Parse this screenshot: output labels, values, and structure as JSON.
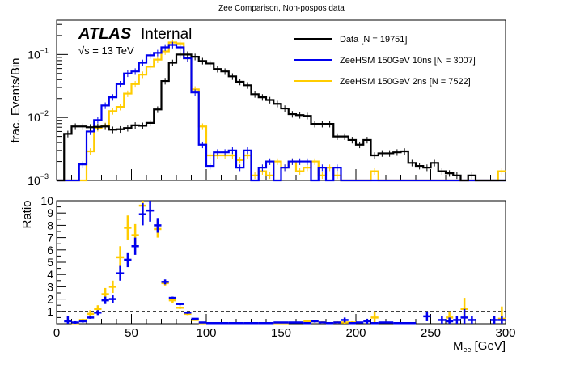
{
  "title": "Zee Comparison, Non-pospos data",
  "atlas_label": "ATLAS",
  "atlas_sublabel": "Internal",
  "energy_label": "√s = 13 TeV",
  "colors": {
    "data": "#000000",
    "sig10ns": "#0000ee",
    "sig2ns": "#ffcc00"
  },
  "chart_data": [
    {
      "type": "line",
      "style": "step-histogram",
      "title": "Zee Comparison, Non-pospos data",
      "xlabel": "M_ee [GeV]",
      "ylabel": "frac. Events/Bin",
      "yscale": "log",
      "xlim": [
        0,
        300
      ],
      "ylim": [
        0.001,
        0.35
      ],
      "yticks": [
        "10^-3",
        "10^-2",
        "10^-1"
      ],
      "bin_width": 5,
      "legend_position": "top-right",
      "series": [
        {
          "name": "Data [N = 19751]",
          "color": "#000000",
          "values": [
            0,
            0.0055,
            0.0072,
            0.0072,
            0.007,
            0.0071,
            0.0072,
            0.0064,
            0.0065,
            0.0068,
            0.0075,
            0.0074,
            0.0082,
            0.0134,
            0.038,
            0.074,
            0.1,
            0.1,
            0.092,
            0.079,
            0.072,
            0.059,
            0.054,
            0.045,
            0.037,
            0.0325,
            0.0235,
            0.021,
            0.019,
            0.0165,
            0.0139,
            0.0113,
            0.0109,
            0.0106,
            0.0079,
            0.0079,
            0.0079,
            0.005,
            0.005,
            0.0044,
            0.0037,
            0.0044,
            0.0025,
            0.0027,
            0.0027,
            0.0028,
            0.0029,
            0.0019,
            0.0017,
            0.0016,
            0.0019,
            0.0014,
            0.0013,
            0.0012,
            0.001,
            0.0012,
            0.001,
            0.001,
            0.001,
            0.001
          ]
        },
        {
          "name": "ZeeHSM 150GeV 10ns [N = 3007]",
          "color": "#0000ee",
          "values": [
            0,
            0,
            0,
            0.0018,
            0.006,
            0.0091,
            0.0155,
            0.021,
            0.034,
            0.05,
            0.054,
            0.074,
            0.097,
            0.106,
            0.13,
            0.142,
            0.13,
            0.087,
            0.025,
            0.0037,
            0.0017,
            0.0028,
            0.0028,
            0.003,
            0.0016,
            0.003,
            0.001,
            0.0016,
            0.002,
            0.001,
            0.0016,
            0.002,
            0.002,
            0.002,
            0.001,
            0.0016,
            0.001,
            0.0016,
            0.001,
            0.001,
            0.001,
            0.001,
            0.001,
            0.001,
            0.001,
            0.001,
            0.001,
            0.001,
            0.001,
            0.001,
            0.001,
            0.001,
            0.001,
            0.001,
            0.001,
            0.001,
            0.001,
            0.001,
            0.001,
            0.001
          ]
        },
        {
          "name": "ZeeHSM 150GeV 2ns [N = 7522]",
          "color": "#ffcc00",
          "values": [
            0,
            0,
            0,
            0.001,
            0.0029,
            0.0068,
            0.0074,
            0.0126,
            0.0147,
            0.024,
            0.034,
            0.048,
            0.064,
            0.083,
            0.112,
            0.155,
            0.15,
            0.087,
            0.028,
            0.0072,
            0.0025,
            0.0025,
            0.0025,
            0.0025,
            0.0021,
            0.0025,
            0.0012,
            0.0014,
            0.0012,
            0.002,
            0.0016,
            0.002,
            0.0014,
            0.0016,
            0.002,
            0.0012,
            0.0016,
            0.0012,
            0.001,
            0.001,
            0.001,
            0.001,
            0.0014,
            0.001,
            0.001,
            0.001,
            0.001,
            0.001,
            0.001,
            0.001,
            0.001,
            0.001,
            0.001,
            0.001,
            0.001,
            0.001,
            0.001,
            0.001,
            0.001,
            0.0014
          ]
        }
      ]
    },
    {
      "type": "scatter",
      "style": "error-bar",
      "xlabel": "M_ee [GeV]",
      "ylabel": "Ratio",
      "xlim": [
        0,
        300
      ],
      "ylim": [
        0,
        10
      ],
      "xticks": [
        0,
        50,
        100,
        150,
        200,
        250,
        300
      ],
      "yticks": [
        1,
        2,
        3,
        4,
        5,
        6,
        7,
        8,
        9,
        10
      ],
      "reference_line": 1,
      "series": [
        {
          "name": "10ns / Data",
          "color": "#0000ee",
          "x": [
            7.5,
            12.5,
            17.5,
            22.5,
            27.5,
            32.5,
            37.5,
            42.5,
            47.5,
            52.5,
            57.5,
            62.5,
            67.5,
            72.5,
            77.5,
            82.5,
            87.5,
            92.5,
            97.5,
            102.5,
            107.5,
            112.5,
            117.5,
            122.5,
            127.5,
            132.5,
            137.5,
            142.5,
            147.5,
            152.5,
            157.5,
            162.5,
            167.5,
            172.5,
            177.5,
            182.5,
            187.5,
            192.5,
            197.5,
            202.5,
            207.5,
            212.5,
            217.5,
            222.5,
            227.5,
            232.5,
            237.5,
            247.5,
            257.5,
            262.5,
            267.5,
            272.5,
            277.5,
            292.5,
            297.5
          ],
          "y": [
            0.2,
            0.1,
            0.2,
            0.5,
            0.9,
            1.9,
            2.0,
            4.1,
            5.2,
            6.3,
            8.9,
            9.2,
            8.0,
            3.4,
            2.1,
            1.6,
            0.9,
            0.4,
            0.1,
            0.05,
            0.05,
            0.05,
            0.05,
            0.05,
            0.05,
            0.05,
            0.05,
            0.05,
            0.1,
            0.1,
            0.1,
            0.1,
            0.05,
            0.2,
            0.1,
            0.05,
            0.1,
            0.3,
            0.05,
            0.1,
            0.2,
            0.05,
            0.1,
            0.1,
            0.05,
            0.05,
            0.05,
            0.6,
            0.3,
            0.2,
            0.3,
            0.5,
            0.3,
            0.3,
            0.3
          ],
          "yerr": [
            0.4,
            0.1,
            0.1,
            0.1,
            0.2,
            0.3,
            0.3,
            0.6,
            0.6,
            0.7,
            0.9,
            0.9,
            0.6,
            0.2,
            0.1,
            0.1,
            0.1,
            0.05,
            0.05,
            0.05,
            0.05,
            0.05,
            0.05,
            0.05,
            0.05,
            0.05,
            0.05,
            0.05,
            0.05,
            0.05,
            0.05,
            0.05,
            0.05,
            0.1,
            0.05,
            0.05,
            0.05,
            0.2,
            0.05,
            0.05,
            0.2,
            0.05,
            0.05,
            0.05,
            0.05,
            0.05,
            0.05,
            0.4,
            0.3,
            0.3,
            0.3,
            0.7,
            0.3,
            0.3,
            0.3
          ]
        },
        {
          "name": "2ns / Data",
          "color": "#ffcc00",
          "x": [
            12.5,
            17.5,
            22.5,
            27.5,
            32.5,
            37.5,
            42.5,
            47.5,
            52.5,
            57.5,
            67.5,
            72.5,
            77.5,
            82.5,
            87.5,
            92.5,
            97.5,
            137.5,
            142.5,
            147.5,
            152.5,
            167.5,
            172.5,
            177.5,
            187.5,
            192.5,
            197.5,
            212.5,
            262.5,
            272.5,
            297.5
          ],
          "y": [
            0.05,
            0.3,
            0.8,
            1.2,
            2.4,
            3.0,
            5.4,
            7.8,
            7.2,
            9.6,
            7.7,
            3.3,
            1.9,
            1.3,
            0.8,
            0.3,
            0.05,
            0.05,
            0.05,
            0.05,
            0.05,
            0.2,
            0.2,
            0.1,
            0.1,
            0.1,
            0.1,
            0.5,
            0.5,
            1.2,
            0.4
          ],
          "yerr": [
            0.05,
            0.1,
            0.3,
            0.3,
            0.5,
            0.5,
            0.9,
            1.0,
            0.9,
            0.6,
            0.7,
            0.2,
            0.2,
            0.1,
            0.1,
            0.05,
            0.05,
            0.05,
            0.05,
            0.05,
            0.05,
            0.1,
            0.1,
            0.1,
            0.1,
            0.1,
            0.1,
            0.5,
            0.5,
            0.9,
            1.0
          ]
        }
      ]
    }
  ]
}
